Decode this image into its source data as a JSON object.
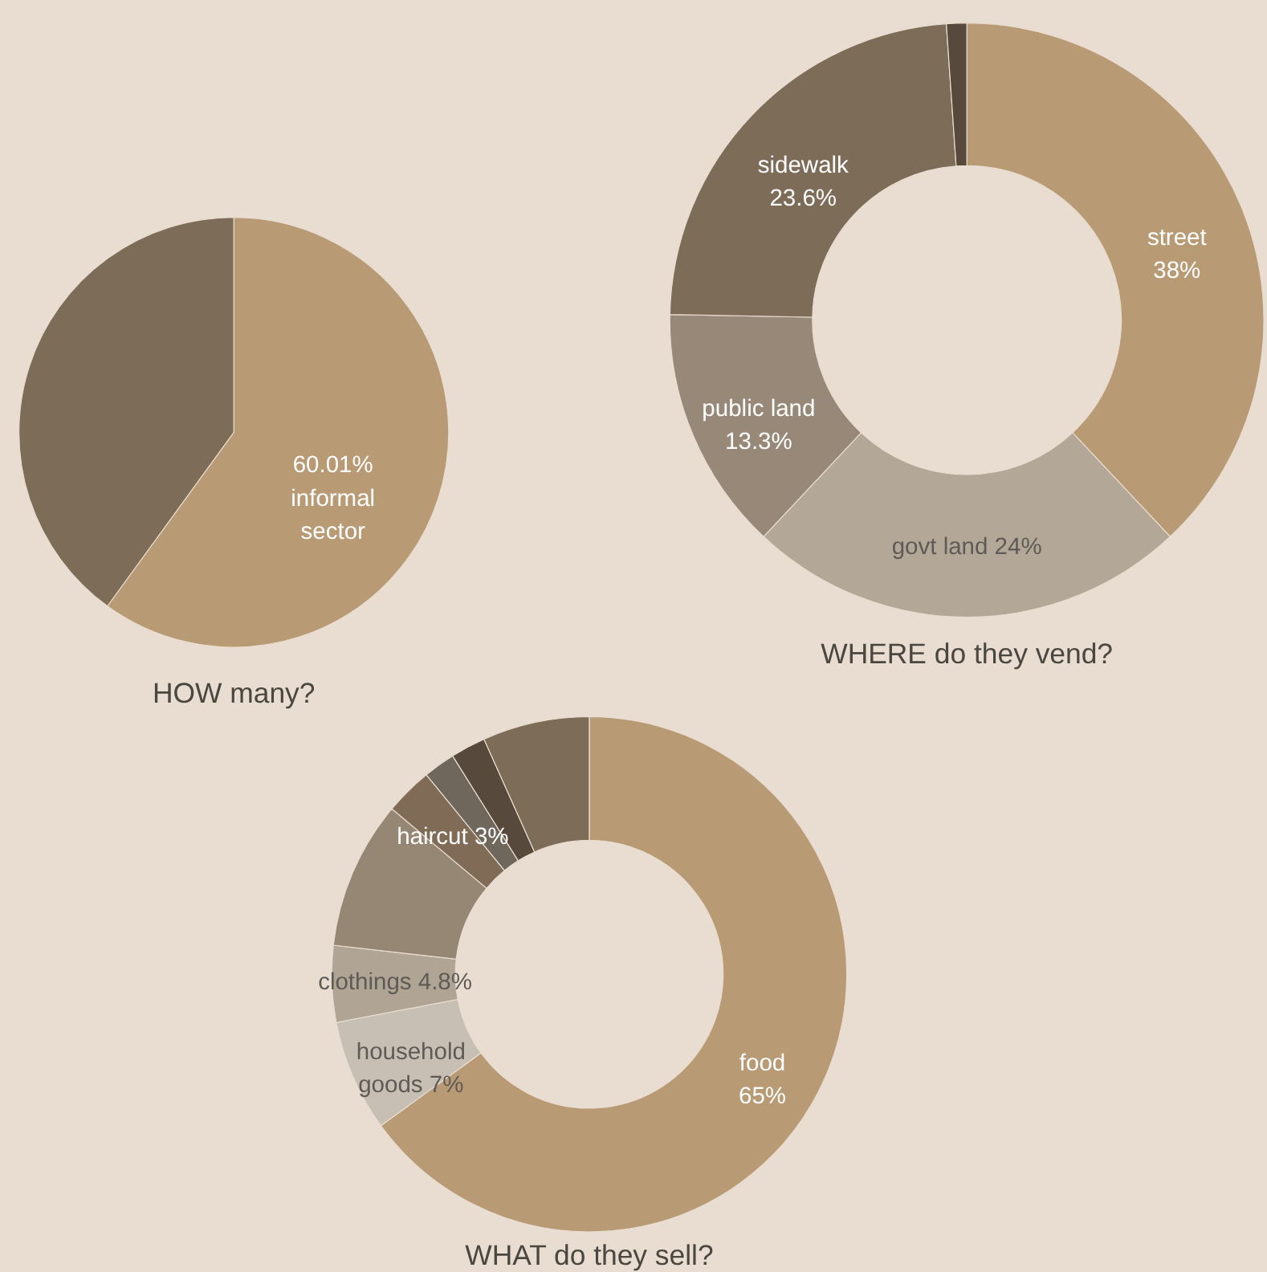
{
  "chart_data": [
    {
      "type": "pie",
      "title": "HOW many?",
      "values": [
        60.01,
        39.99
      ],
      "colors": [
        "#b89a74",
        "#7d6c57"
      ],
      "value_labels": [
        "60.01%\ninformal\nsector",
        null
      ]
    },
    {
      "type": "donut",
      "title": "WHERE do they vend?",
      "values": [
        38,
        24,
        13.3,
        23.6,
        1.1
      ],
      "colors": [
        "#b89a74",
        "#b3a797",
        "#978877",
        "#7d6c57",
        "#574a3c"
      ],
      "value_labels": [
        "street\n38%",
        "govt land 24%",
        "public land\n13.3%",
        "sidewalk\n23.6%",
        null
      ]
    },
    {
      "type": "donut",
      "title": "WHAT do they sell?",
      "values": [
        65,
        7,
        4.8,
        9.3,
        3,
        2,
        2.2,
        6.7
      ],
      "colors": [
        "#b89a74",
        "#c8bfb4",
        "#b0a595",
        "#968774",
        "#806c56",
        "#6f675c",
        "#574a3c",
        "#7d6c57"
      ],
      "value_labels": [
        "food\n65%",
        "household\ngoods 7%",
        "clothings 4.8%",
        null,
        "haircut 3%",
        null,
        null,
        null
      ]
    }
  ]
}
